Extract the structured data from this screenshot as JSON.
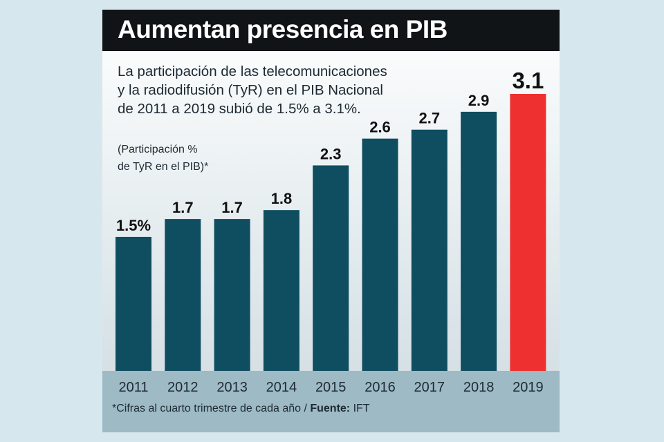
{
  "chart_data": {
    "type": "bar",
    "title": "Aumentan presencia en PIB",
    "subtitle": [
      "La participación de las telecomunicaciones",
      "y la radiodifusión (TyR) en el PIB Nacional",
      "de 2011 a 2019 subió de 1.5% a 3.1%."
    ],
    "ylabel": [
      "(Participación %",
      "de TyR en el PIB)*"
    ],
    "categories": [
      "2011",
      "2012",
      "2013",
      "2014",
      "2015",
      "2016",
      "2017",
      "2018",
      "2019"
    ],
    "values": [
      1.5,
      1.7,
      1.7,
      1.8,
      2.3,
      2.6,
      2.7,
      2.9,
      3.1
    ],
    "data_labels": [
      "1.5%",
      "1.7",
      "1.7",
      "1.8",
      "2.3",
      "2.6",
      "2.7",
      "2.9",
      "3.1"
    ],
    "highlight_index": 8,
    "ylim": [
      0,
      3.1
    ],
    "colors": {
      "bar": "#0f4d60",
      "highlight": "#ee3030",
      "label": "#111111"
    }
  },
  "footnote": {
    "note": "*Cifras al cuarto trimestre de cada año / ",
    "source_label": "Fuente:",
    "source": " IFT"
  }
}
